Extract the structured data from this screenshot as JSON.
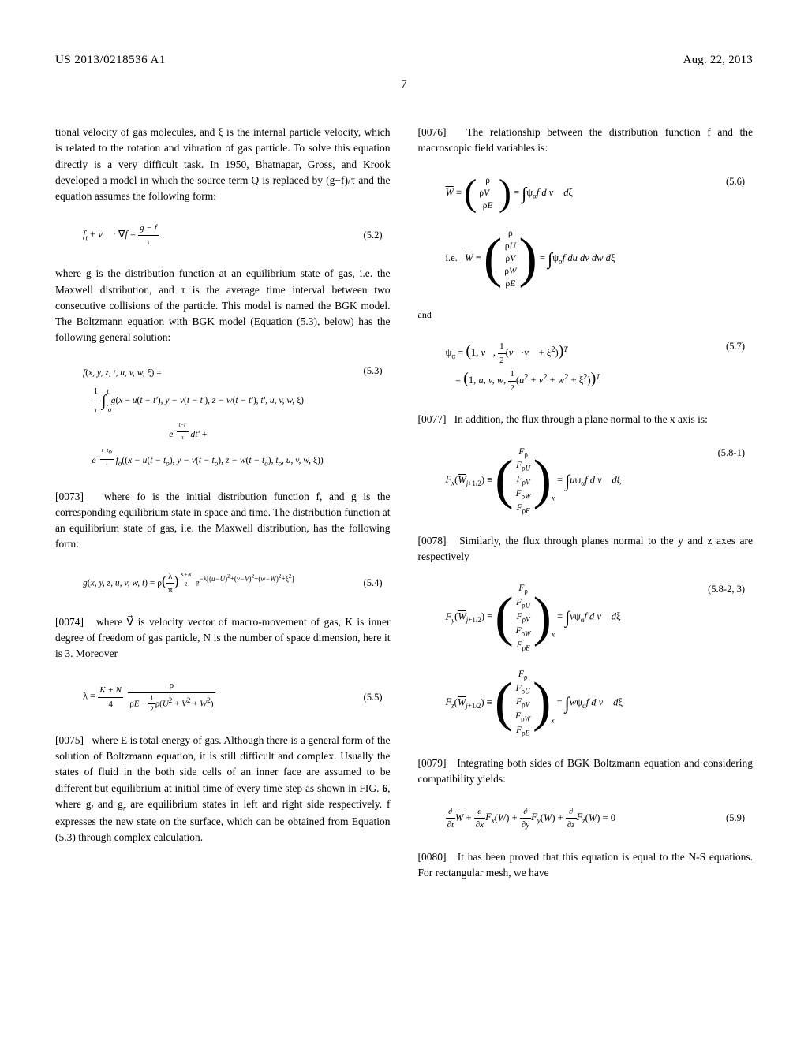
{
  "header": {
    "patent_number": "US 2013/0218536 A1",
    "date": "Aug. 22, 2013",
    "page_number": "7"
  },
  "left": {
    "intro": "tional velocity of gas molecules, and ξ is the internal particle velocity, which is related to the rotation and vibration of gas particle. To solve this equation directly is a very difficult task. In 1950, Bhatnagar, Gross, and Krook developed a model in which the source term Q is replaced by (g−f)/τ and the equation assumes the following form:",
    "eq52_num": "(5.2)",
    "after52": "where g is the distribution function at an equilibrium state of gas, i.e. the Maxwell distribution, and τ is the average time interval between two consecutive collisions of the particle. This model is named the BGK model. The Boltzmann equation with BGK model (Equation (5.3), below) has the following general solution:",
    "eq53_num": "(5.3)",
    "p0073_num": "[0073]",
    "p0073": "where fo is the initial distribution function f, and g is the corresponding equilibrium state in space and time. The distribution function at an equilibrium state of gas, i.e. the Maxwell distribution, has the following form:",
    "eq54_num": "(5.4)",
    "p0074_num": "[0074]",
    "p0074": "where V⃗ is velocity vector of macro-movement of gas, K is inner degree of freedom of gas particle, N is the number of space dimension, here it is 3. Moreover",
    "eq55_num": "(5.5)",
    "p0075_num": "[0075]",
    "p0075": "where E is total energy of gas. Although there is a general form of the solution of Boltzmann equation, it is still difficult and complex. Usually the states of fluid in the both side cells of an inner face are assumed to be different but equilibrium at initial time of every time step as shown in FIG. 6, where gl and gr are equilibrium states in left and right side respectively. f expresses the new state on the surface, which can be obtained from Equation (5.3) through complex calculation."
  },
  "right": {
    "p0076_num": "[0076]",
    "p0076": "The relationship between the distribution function f and the macroscopic field variables is:",
    "eq56_num": "(5.6)",
    "eq57_num": "(5.7)",
    "and_label": "and",
    "ie_label": "i.e.",
    "p0077_num": "[0077]",
    "p0077": "In addition, the flux through a plane normal to the x axis is:",
    "eq581_num": "(5.8-1)",
    "p0078_num": "[0078]",
    "p0078": "Similarly, the flux through planes normal to the y and z axes are respectively",
    "eq582_num": "(5.8-2, 3)",
    "p0079_num": "[0079]",
    "p0079": "Integrating both sides of BGK Boltzmann equation and considering compatibility yields:",
    "eq59_num": "(5.9)",
    "p0080_num": "[0080]",
    "p0080": "It has been proved that this equation is equal to the N-S equations. For rectangular mesh, we have"
  }
}
